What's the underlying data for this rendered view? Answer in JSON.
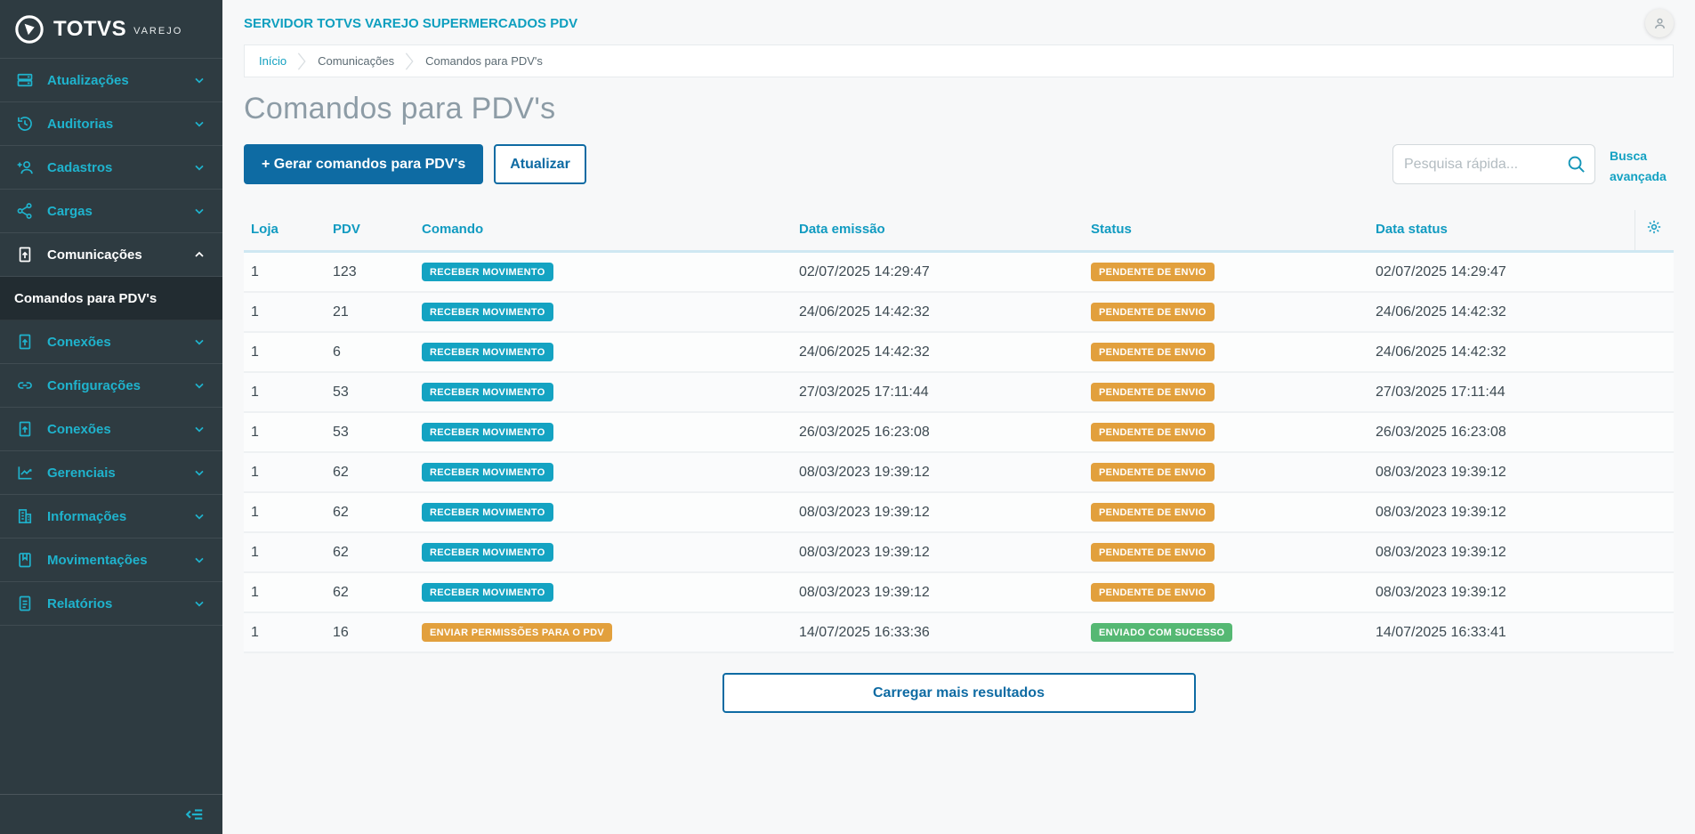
{
  "app": {
    "brand": "TOTVS",
    "brand_sub": "VAREJO"
  },
  "header": {
    "title": "SERVIDOR TOTVS VAREJO SUPERMERCADOS PDV"
  },
  "sidebar": {
    "items": [
      {
        "id": "atualizacoes",
        "label": "Atualizações",
        "icon": "server"
      },
      {
        "id": "auditorias",
        "label": "Auditorias",
        "icon": "history"
      },
      {
        "id": "cadastros",
        "label": "Cadastros",
        "icon": "user-plus"
      },
      {
        "id": "cargas",
        "label": "Cargas",
        "icon": "share"
      },
      {
        "id": "comunicacoes",
        "label": "Comunicações",
        "icon": "file-up",
        "active": true,
        "sub": "Comandos para PDV's"
      },
      {
        "id": "conexoes",
        "label": "Conexões",
        "icon": "file-up"
      },
      {
        "id": "configuracoes",
        "label": "Configurações",
        "icon": "link"
      },
      {
        "id": "conexoes-2",
        "label": "Conexões",
        "icon": "file-up"
      },
      {
        "id": "gerenciais",
        "label": "Gerenciais",
        "icon": "chart"
      },
      {
        "id": "informacoes",
        "label": "Informações",
        "icon": "building"
      },
      {
        "id": "movimentacoes",
        "label": "Movimentações",
        "icon": "book"
      },
      {
        "id": "relatorios",
        "label": "Relatórios",
        "icon": "file-lines"
      }
    ]
  },
  "breadcrumb": {
    "items": [
      "Início",
      "Comunicações",
      "Comandos para PDV's"
    ]
  },
  "page": {
    "title": "Comandos para PDV's",
    "generate_button": "+  Gerar comandos para PDV's",
    "refresh_button": "Atualizar",
    "load_more": "Carregar mais resultados"
  },
  "search": {
    "placeholder": "Pesquisa rápida...",
    "advanced_label": "Busca avançada"
  },
  "table": {
    "columns": [
      "Loja",
      "PDV",
      "Comando",
      "Data emissão",
      "Status",
      "Data status"
    ],
    "rows": [
      {
        "loja": "1",
        "pdv": "123",
        "comando": "RECEBER MOVIMENTO",
        "comando_color": "teal",
        "emissao": "02/07/2025 14:29:47",
        "status": "PENDENTE DE ENVIO",
        "status_color": "orange",
        "data_status": "02/07/2025 14:29:47"
      },
      {
        "loja": "1",
        "pdv": "21",
        "comando": "RECEBER MOVIMENTO",
        "comando_color": "teal",
        "emissao": "24/06/2025 14:42:32",
        "status": "PENDENTE DE ENVIO",
        "status_color": "orange",
        "data_status": "24/06/2025 14:42:32"
      },
      {
        "loja": "1",
        "pdv": "6",
        "comando": "RECEBER MOVIMENTO",
        "comando_color": "teal",
        "emissao": "24/06/2025 14:42:32",
        "status": "PENDENTE DE ENVIO",
        "status_color": "orange",
        "data_status": "24/06/2025 14:42:32"
      },
      {
        "loja": "1",
        "pdv": "53",
        "comando": "RECEBER MOVIMENTO",
        "comando_color": "teal",
        "emissao": "27/03/2025 17:11:44",
        "status": "PENDENTE DE ENVIO",
        "status_color": "orange",
        "data_status": "27/03/2025 17:11:44"
      },
      {
        "loja": "1",
        "pdv": "53",
        "comando": "RECEBER MOVIMENTO",
        "comando_color": "teal",
        "emissao": "26/03/2025 16:23:08",
        "status": "PENDENTE DE ENVIO",
        "status_color": "orange",
        "data_status": "26/03/2025 16:23:08"
      },
      {
        "loja": "1",
        "pdv": "62",
        "comando": "RECEBER MOVIMENTO",
        "comando_color": "teal",
        "emissao": "08/03/2023 19:39:12",
        "status": "PENDENTE DE ENVIO",
        "status_color": "orange",
        "data_status": "08/03/2023 19:39:12"
      },
      {
        "loja": "1",
        "pdv": "62",
        "comando": "RECEBER MOVIMENTO",
        "comando_color": "teal",
        "emissao": "08/03/2023 19:39:12",
        "status": "PENDENTE DE ENVIO",
        "status_color": "orange",
        "data_status": "08/03/2023 19:39:12"
      },
      {
        "loja": "1",
        "pdv": "62",
        "comando": "RECEBER MOVIMENTO",
        "comando_color": "teal",
        "emissao": "08/03/2023 19:39:12",
        "status": "PENDENTE DE ENVIO",
        "status_color": "orange",
        "data_status": "08/03/2023 19:39:12"
      },
      {
        "loja": "1",
        "pdv": "62",
        "comando": "RECEBER MOVIMENTO",
        "comando_color": "teal",
        "emissao": "08/03/2023 19:39:12",
        "status": "PENDENTE DE ENVIO",
        "status_color": "orange",
        "data_status": "08/03/2023 19:39:12"
      },
      {
        "loja": "1",
        "pdv": "16",
        "comando": "ENVIAR PERMISSÕES PARA O PDV",
        "comando_color": "orange",
        "emissao": "14/07/2025 16:33:36",
        "status": "ENVIADO COM SUCESSO",
        "status_color": "green",
        "data_status": "14/07/2025 16:33:41"
      }
    ]
  },
  "colors": {
    "sidebar_bg": "#2e3b41",
    "sidebar_teal": "#1fb3cd",
    "header_teal": "#0e9fbf",
    "primary_blue": "#0e6ba3",
    "badge_teal": "#14a3c2",
    "badge_orange": "#e2a03d",
    "badge_green": "#55b873",
    "page_bg": "#f7f8f9"
  }
}
